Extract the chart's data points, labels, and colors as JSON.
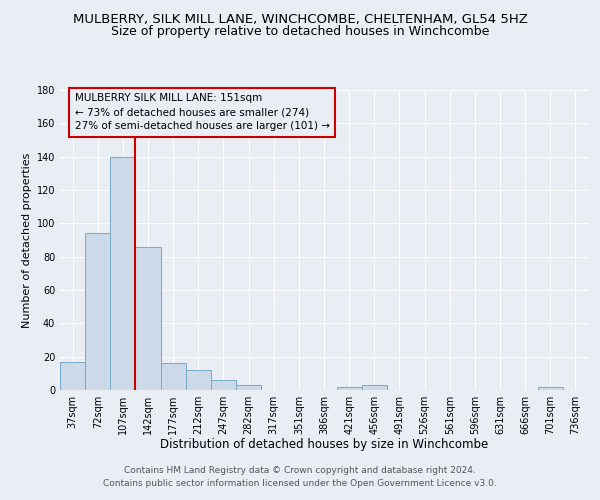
{
  "title": "MULBERRY, SILK MILL LANE, WINCHCOMBE, CHELTENHAM, GL54 5HZ",
  "subtitle": "Size of property relative to detached houses in Winchcombe",
  "xlabel": "Distribution of detached houses by size in Winchcombe",
  "ylabel": "Number of detached properties",
  "bin_labels": [
    "37sqm",
    "72sqm",
    "107sqm",
    "142sqm",
    "177sqm",
    "212sqm",
    "247sqm",
    "282sqm",
    "317sqm",
    "351sqm",
    "386sqm",
    "421sqm",
    "456sqm",
    "491sqm",
    "526sqm",
    "561sqm",
    "596sqm",
    "631sqm",
    "666sqm",
    "701sqm",
    "736sqm"
  ],
  "bar_values": [
    17,
    94,
    140,
    86,
    16,
    12,
    6,
    3,
    0,
    0,
    0,
    2,
    3,
    0,
    0,
    0,
    0,
    0,
    0,
    2,
    0
  ],
  "bar_color": "#ccd9e8",
  "bar_edge_color": "#7aaac8",
  "vline_color": "#cc0000",
  "annotation_box_text": "MULBERRY SILK MILL LANE: 151sqm\n← 73% of detached houses are smaller (274)\n27% of semi-detached houses are larger (101) →",
  "box_edge_color": "#cc0000",
  "ylim": [
    0,
    180
  ],
  "yticks": [
    0,
    20,
    40,
    60,
    80,
    100,
    120,
    140,
    160,
    180
  ],
  "background_color": "#e8eef4",
  "grid_color": "#ffffff",
  "footer_text": "Contains HM Land Registry data © Crown copyright and database right 2024.\nContains public sector information licensed under the Open Government Licence v3.0.",
  "title_fontsize": 9.5,
  "subtitle_fontsize": 9,
  "xlabel_fontsize": 8.5,
  "ylabel_fontsize": 8,
  "tick_fontsize": 7,
  "annotation_fontsize": 7.5,
  "footer_fontsize": 6.5
}
